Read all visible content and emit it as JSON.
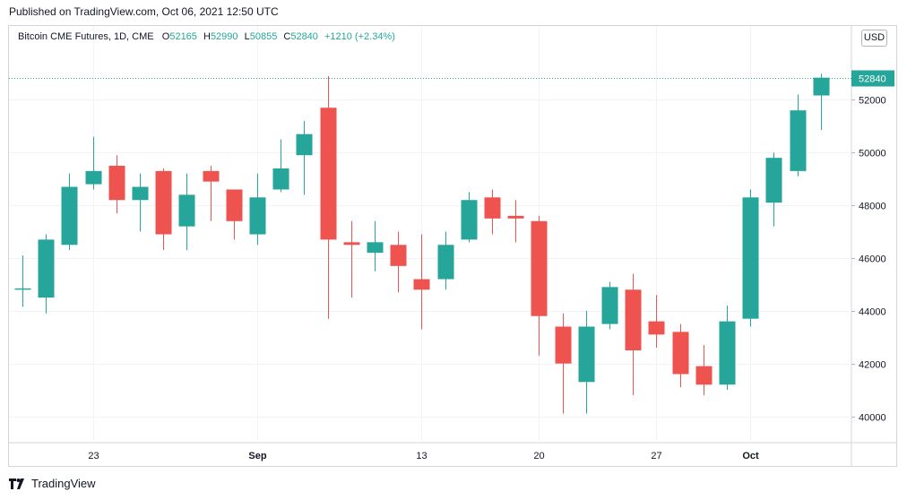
{
  "published": "Published on TradingView.com, Oct 06, 2021 12:50 UTC",
  "legend": {
    "symbol": "Bitcoin CME Futures, 1D, CME",
    "o_label": "O",
    "o_value": "52165",
    "h_label": "H",
    "h_value": "52990",
    "l_label": "L",
    "l_value": "50855",
    "c_label": "C",
    "c_value": "52840",
    "change": "+1210 (+2.34%)"
  },
  "currency_button": "USD",
  "footer": {
    "brand": "TradingView"
  },
  "colors": {
    "up": "#26a69a",
    "down": "#ef5350",
    "grid": "#f0f3fa",
    "last_price_line": "#26a69a"
  },
  "chart_data": {
    "type": "candlestick",
    "title": "Bitcoin CME Futures, 1D, CME",
    "ylim": [
      39000,
      54800
    ],
    "y_ticks": [
      40000,
      42000,
      44000,
      46000,
      48000,
      50000,
      52000
    ],
    "x_ticks": [
      {
        "label": "23",
        "index": 3
      },
      {
        "label": "Sep",
        "index": 10
      },
      {
        "label": "13",
        "index": 17
      },
      {
        "label": "20",
        "index": 22
      },
      {
        "label": "27",
        "index": 27
      },
      {
        "label": "Oct",
        "index": 31
      }
    ],
    "last_price": 52840,
    "last_price_label": "52840",
    "candles": [
      {
        "o": 44850,
        "h": 46100,
        "l": 44150,
        "c": 44850
      },
      {
        "o": 44500,
        "h": 46900,
        "l": 43900,
        "c": 46700
      },
      {
        "o": 46500,
        "h": 49200,
        "l": 46300,
        "c": 48700
      },
      {
        "o": 48800,
        "h": 50600,
        "l": 48600,
        "c": 49300
      },
      {
        "o": 49500,
        "h": 49900,
        "l": 47700,
        "c": 48200
      },
      {
        "o": 48200,
        "h": 49200,
        "l": 47000,
        "c": 48700
      },
      {
        "o": 49300,
        "h": 49400,
        "l": 46300,
        "c": 46900
      },
      {
        "o": 47200,
        "h": 49200,
        "l": 46300,
        "c": 48400
      },
      {
        "o": 49300,
        "h": 49500,
        "l": 47400,
        "c": 48900
      },
      {
        "o": 48600,
        "h": 48600,
        "l": 46700,
        "c": 47400
      },
      {
        "o": 46900,
        "h": 49200,
        "l": 46500,
        "c": 48300
      },
      {
        "o": 48600,
        "h": 50500,
        "l": 48500,
        "c": 49400
      },
      {
        "o": 49900,
        "h": 51200,
        "l": 48400,
        "c": 50700
      },
      {
        "o": 51700,
        "h": 52900,
        "l": 43700,
        "c": 46700
      },
      {
        "o": 46600,
        "h": 47400,
        "l": 44500,
        "c": 46500
      },
      {
        "o": 46200,
        "h": 47400,
        "l": 45500,
        "c": 46600
      },
      {
        "o": 46500,
        "h": 47000,
        "l": 44700,
        "c": 45700
      },
      {
        "o": 45200,
        "h": 46900,
        "l": 43300,
        "c": 44800
      },
      {
        "o": 45200,
        "h": 47000,
        "l": 44800,
        "c": 46500
      },
      {
        "o": 46700,
        "h": 48500,
        "l": 46600,
        "c": 48200
      },
      {
        "o": 48300,
        "h": 48600,
        "l": 46900,
        "c": 47500
      },
      {
        "o": 47600,
        "h": 48200,
        "l": 46600,
        "c": 47500
      },
      {
        "o": 47400,
        "h": 47600,
        "l": 42300,
        "c": 43800
      },
      {
        "o": 43400,
        "h": 43900,
        "l": 40100,
        "c": 42000
      },
      {
        "o": 41300,
        "h": 44000,
        "l": 40100,
        "c": 43400
      },
      {
        "o": 43500,
        "h": 45100,
        "l": 43300,
        "c": 44900
      },
      {
        "o": 44800,
        "h": 45400,
        "l": 40800,
        "c": 42500
      },
      {
        "o": 43600,
        "h": 44600,
        "l": 42600,
        "c": 43100
      },
      {
        "o": 43200,
        "h": 43500,
        "l": 41100,
        "c": 41600
      },
      {
        "o": 41900,
        "h": 42700,
        "l": 40800,
        "c": 41200
      },
      {
        "o": 41200,
        "h": 44200,
        "l": 41000,
        "c": 43600
      },
      {
        "o": 43700,
        "h": 48600,
        "l": 43400,
        "c": 48300
      },
      {
        "o": 48100,
        "h": 50000,
        "l": 47200,
        "c": 49800
      },
      {
        "o": 49300,
        "h": 52200,
        "l": 49100,
        "c": 51600
      },
      {
        "o": 52165,
        "h": 52990,
        "l": 50855,
        "c": 52840
      }
    ]
  }
}
